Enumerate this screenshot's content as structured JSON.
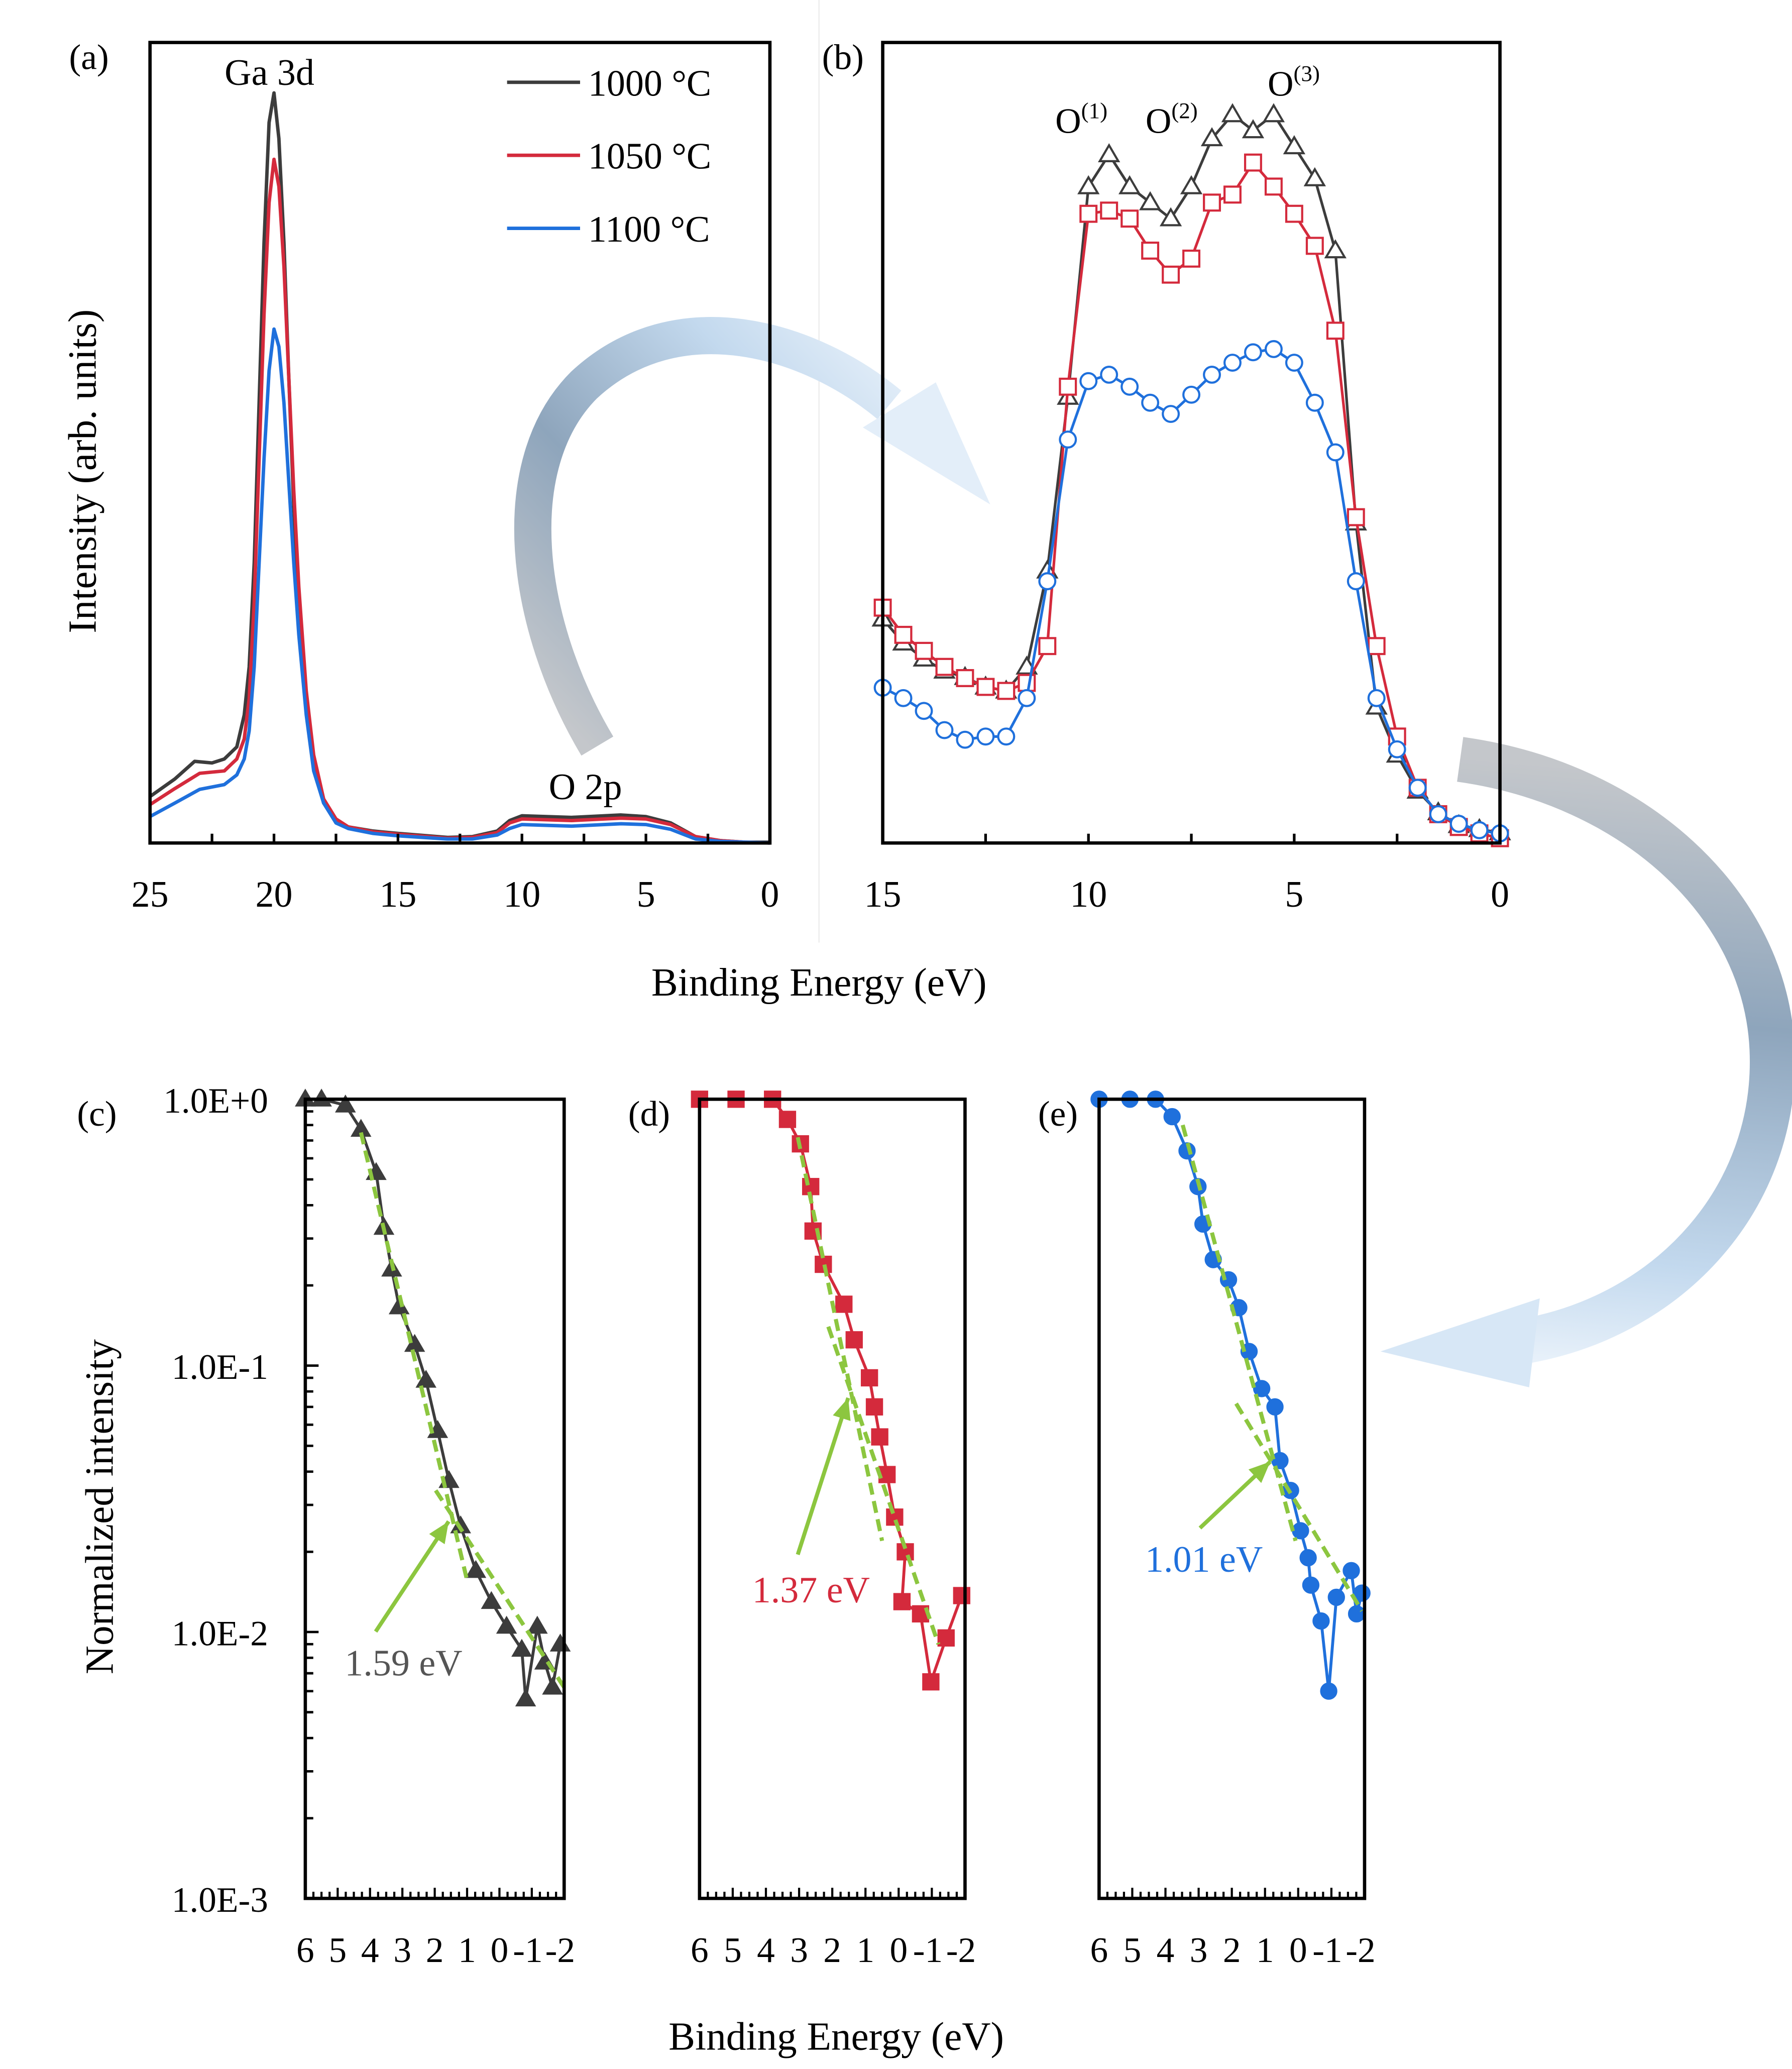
{
  "figure": {
    "xlabel_top": "Binding Energy (eV)",
    "xlabel_bottom": "Binding Energy (eV)"
  },
  "colors": {
    "series_1000": "#3c3c3c",
    "series_1050": "#d42a3c",
    "series_1100": "#1f70dc",
    "fit_line": "#8cc63f",
    "annotation_c": "#555555"
  },
  "chart_data": [
    {
      "panel_label": "(a)",
      "type": "line",
      "ylabel": "Intensity (arb. units)",
      "xlim": [
        25,
        0
      ],
      "ylim": [
        0,
        100
      ],
      "xticks": [
        25,
        20,
        15,
        10,
        5,
        0
      ],
      "xticklabels": [
        "25",
        "20",
        "15",
        "10",
        "5",
        "0"
      ],
      "grid": false,
      "annotations": [
        "Ga 3d",
        "O 2p"
      ],
      "legend": {
        "position": "top-right"
      },
      "series": [
        {
          "name": "1000 °C",
          "color": "#3c3c3c",
          "points": [
            [
              25,
              5.8
            ],
            [
              24,
              8
            ],
            [
              23.2,
              10.2
            ],
            [
              22.5,
              10
            ],
            [
              22,
              10.5
            ],
            [
              21.5,
              12
            ],
            [
              21.2,
              16
            ],
            [
              21,
              22
            ],
            [
              20.8,
              35
            ],
            [
              20.6,
              55
            ],
            [
              20.4,
              75
            ],
            [
              20.2,
              90
            ],
            [
              20,
              93.7
            ],
            [
              19.8,
              88
            ],
            [
              19.6,
              75
            ],
            [
              19.4,
              58
            ],
            [
              19.2,
              42
            ],
            [
              19,
              30
            ],
            [
              18.7,
              18
            ],
            [
              18.4,
              10
            ],
            [
              18,
              5
            ],
            [
              17.5,
              2.8
            ],
            [
              17,
              2
            ],
            [
              16,
              1.5
            ],
            [
              15,
              1.2
            ],
            [
              13,
              0.7
            ],
            [
              12,
              0.8
            ],
            [
              11,
              1.5
            ],
            [
              10.5,
              2.8
            ],
            [
              10,
              3.4
            ],
            [
              8,
              3.2
            ],
            [
              6,
              3.5
            ],
            [
              5,
              3.3
            ],
            [
              4,
              2.5
            ],
            [
              3,
              0.8
            ],
            [
              2,
              0.3
            ],
            [
              1,
              0.1
            ],
            [
              0,
              0.1
            ]
          ]
        },
        {
          "name": "1050 °C",
          "color": "#d42a3c",
          "points": [
            [
              25,
              4.8
            ],
            [
              24,
              6.8
            ],
            [
              23,
              8.7
            ],
            [
              22,
              9
            ],
            [
              21.5,
              10.5
            ],
            [
              21.2,
              13
            ],
            [
              21,
              18
            ],
            [
              20.8,
              30
            ],
            [
              20.6,
              48
            ],
            [
              20.4,
              66
            ],
            [
              20.2,
              80
            ],
            [
              20,
              85.4
            ],
            [
              19.8,
              82
            ],
            [
              19.6,
              72
            ],
            [
              19.4,
              58
            ],
            [
              19.2,
              44
            ],
            [
              19,
              32
            ],
            [
              18.7,
              19
            ],
            [
              18.4,
              11
            ],
            [
              18,
              5.5
            ],
            [
              17.5,
              3
            ],
            [
              17,
              2
            ],
            [
              16,
              1.4
            ],
            [
              15,
              1.1
            ],
            [
              13,
              0.6
            ],
            [
              12,
              0.7
            ],
            [
              11,
              1.3
            ],
            [
              10.5,
              2.5
            ],
            [
              10,
              3
            ],
            [
              8,
              2.8
            ],
            [
              6,
              3.1
            ],
            [
              5,
              3
            ],
            [
              4,
              2.3
            ],
            [
              3,
              0.8
            ],
            [
              2,
              0.3
            ],
            [
              1,
              0.1
            ],
            [
              0,
              0
            ]
          ]
        },
        {
          "name": "1100 °C",
          "color": "#1f70dc",
          "points": [
            [
              25,
              3.3
            ],
            [
              24,
              5
            ],
            [
              23,
              6.7
            ],
            [
              22,
              7.3
            ],
            [
              21.5,
              8.5
            ],
            [
              21.2,
              10.5
            ],
            [
              21,
              14
            ],
            [
              20.8,
              22
            ],
            [
              20.6,
              35
            ],
            [
              20.4,
              48
            ],
            [
              20.2,
              59
            ],
            [
              20,
              64.2
            ],
            [
              19.8,
              62
            ],
            [
              19.6,
              55
            ],
            [
              19.4,
              45
            ],
            [
              19.2,
              35
            ],
            [
              19,
              26
            ],
            [
              18.7,
              16
            ],
            [
              18.4,
              9
            ],
            [
              18,
              5
            ],
            [
              17.5,
              2.5
            ],
            [
              17,
              1.8
            ],
            [
              16,
              1.2
            ],
            [
              15,
              0.9
            ],
            [
              13,
              0.5
            ],
            [
              12,
              0.5
            ],
            [
              11,
              1
            ],
            [
              10.5,
              1.8
            ],
            [
              10,
              2.3
            ],
            [
              8,
              2.1
            ],
            [
              6,
              2.4
            ],
            [
              5,
              2.3
            ],
            [
              4,
              1.7
            ],
            [
              3,
              0.5
            ],
            [
              2,
              0.2
            ],
            [
              1,
              0.1
            ],
            [
              0,
              0
            ]
          ]
        }
      ]
    },
    {
      "panel_label": "(b)",
      "type": "line",
      "xlim": [
        15,
        0
      ],
      "ylim": [
        0,
        100
      ],
      "xticks": [
        15,
        10,
        5,
        0
      ],
      "xticklabels": [
        "15",
        "10",
        "5",
        "0"
      ],
      "grid": false,
      "annotations": [
        {
          "base": "O",
          "sup": "(1)"
        },
        {
          "base": "O",
          "sup": "(2)"
        },
        {
          "base": "O",
          "sup": "(3)"
        }
      ],
      "x": [
        15,
        14.5,
        14,
        13.5,
        13,
        12.5,
        12,
        11.5,
        11,
        10.5,
        10,
        9.5,
        9,
        8.5,
        8,
        7.5,
        7,
        6.5,
        6,
        5.5,
        5,
        4.5,
        4,
        3.5,
        3,
        2.5,
        2,
        1.5,
        1,
        0.5,
        0
      ],
      "series": [
        {
          "marker": "triangle-open",
          "color": "#3c3c3c",
          "values": [
            28,
            25,
            23,
            21.5,
            20.7,
            19.5,
            19,
            22,
            34,
            55.7,
            82,
            86,
            82,
            80,
            78,
            82,
            88,
            91,
            89,
            91,
            87,
            83,
            74,
            40,
            17,
            11,
            6.5,
            3.8,
            2.2,
            1.7,
            1.3
          ]
        },
        {
          "marker": "square-open",
          "color": "#d42a3c",
          "values": [
            29.4,
            26,
            24,
            22,
            20.6,
            19.5,
            19,
            20,
            24.6,
            57,
            78.6,
            79,
            78,
            74,
            71,
            73,
            80,
            81,
            85,
            82,
            78.6,
            74.6,
            64,
            40.7,
            24.6,
            13.3,
            6.9,
            3.6,
            2,
            1.2,
            0.6
          ]
        },
        {
          "marker": "circle-open",
          "color": "#1f70dc",
          "values": [
            19.4,
            18.1,
            16.5,
            14.1,
            12.9,
            13.3,
            13.3,
            18.1,
            32.7,
            50.4,
            57.7,
            58.5,
            57,
            55,
            53.6,
            56,
            58.5,
            60,
            61.3,
            61.7,
            60,
            55,
            48.8,
            32.7,
            18.1,
            11.7,
            6.9,
            3.6,
            2.4,
            1.6,
            1.2
          ]
        }
      ]
    },
    {
      "panel_label": "(c)",
      "type": "scatter",
      "ylabel": "Normalized intensity",
      "yscale": "log",
      "ylim": [
        0.001,
        1
      ],
      "yticks": [
        1,
        0.1,
        0.01,
        0.001
      ],
      "yticklabels": [
        "1.0E+0",
        "1.0E-1",
        "1.0E-2",
        "1.0E-3"
      ],
      "xlim": [
        6,
        -2
      ],
      "xticks": [
        6,
        5,
        4,
        3,
        2,
        1,
        0,
        -1,
        -2
      ],
      "xticklabels": [
        "6",
        "5",
        "4",
        "3",
        "2",
        "1",
        "0",
        "-1",
        "-2"
      ],
      "annotation": "1.59 eV",
      "series": [
        {
          "marker": "triangle-filled",
          "color": "#3c3c3c",
          "points": [
            [
              6,
              1.0
            ],
            [
              5.5,
              1.0
            ],
            [
              4.76,
              0.95
            ],
            [
              4.28,
              0.77
            ],
            [
              3.81,
              0.53
            ],
            [
              3.57,
              0.33
            ],
            [
              3.33,
              0.23
            ],
            [
              3.1,
              0.166
            ],
            [
              2.62,
              0.12
            ],
            [
              2.27,
              0.088
            ],
            [
              1.91,
              0.057
            ],
            [
              1.56,
              0.037
            ],
            [
              1.2,
              0.025
            ],
            [
              0.73,
              0.017
            ],
            [
              0.25,
              0.013
            ],
            [
              -0.22,
              0.0105
            ],
            [
              -0.69,
              0.0086
            ],
            [
              -0.81,
              0.0056
            ],
            [
              -1.17,
              0.0105
            ],
            [
              -1.4,
              0.0077
            ],
            [
              -1.64,
              0.0062
            ],
            [
              -1.88,
              0.009
            ]
          ]
        }
      ],
      "fit_lines": [
        [
          [
            4.28,
            0.75
          ],
          [
            1.02,
            0.016
          ]
        ],
        [
          [
            1.97,
            0.034
          ],
          [
            -2,
            0.0062
          ]
        ]
      ]
    },
    {
      "panel_label": "(d)",
      "type": "scatter",
      "yscale": "log",
      "ylim": [
        0.001,
        1
      ],
      "xlim": [
        6,
        -2
      ],
      "xticks": [
        6,
        5,
        4,
        3,
        2,
        1,
        0,
        -1,
        -2
      ],
      "xticklabels": [
        "6",
        "5",
        "4",
        "3",
        "2",
        "1",
        "0",
        "-1",
        "-2"
      ],
      "annotation": "1.37 eV",
      "series": [
        {
          "marker": "square-filled",
          "color": "#d42a3c",
          "points": [
            [
              6,
              1.0
            ],
            [
              4.9,
              1.0
            ],
            [
              3.8,
              1.0
            ],
            [
              3.35,
              0.84
            ],
            [
              2.96,
              0.68
            ],
            [
              2.65,
              0.47
            ],
            [
              2.58,
              0.32
            ],
            [
              2.27,
              0.24
            ],
            [
              1.65,
              0.17
            ],
            [
              1.34,
              0.125
            ],
            [
              0.88,
              0.09
            ],
            [
              0.73,
              0.07
            ],
            [
              0.57,
              0.054
            ],
            [
              0.35,
              0.039
            ],
            [
              0.12,
              0.027
            ],
            [
              -0.2,
              0.02
            ],
            [
              -0.1,
              0.013
            ],
            [
              -0.66,
              0.0117
            ],
            [
              -0.97,
              0.0065
            ],
            [
              -1.43,
              0.0095
            ],
            [
              -1.9,
              0.0137
            ]
          ]
        }
      ],
      "fit_lines": [
        [
          [
            3.04,
            0.72
          ],
          [
            0.5,
            0.022
          ]
        ],
        [
          [
            2.12,
            0.14
          ],
          [
            -1.2,
            0.009
          ]
        ]
      ]
    },
    {
      "panel_label": "(e)",
      "type": "scatter",
      "yscale": "log",
      "ylim": [
        0.001,
        1
      ],
      "xlim": [
        6,
        -2
      ],
      "xticks": [
        6,
        5,
        4,
        3,
        2,
        1,
        0,
        -1,
        -2
      ],
      "xticklabels": [
        "6",
        "5",
        "4",
        "3",
        "2",
        "1",
        "0",
        "-1",
        "-2"
      ],
      "annotation": "1.01 eV",
      "series": [
        {
          "marker": "circle-filled",
          "color": "#1f70dc",
          "points": [
            [
              6,
              1.0
            ],
            [
              5.07,
              1.0
            ],
            [
              4.3,
              1.0
            ],
            [
              3.8,
              0.86
            ],
            [
              3.35,
              0.64
            ],
            [
              3.02,
              0.47
            ],
            [
              2.87,
              0.34
            ],
            [
              2.56,
              0.25
            ],
            [
              2.1,
              0.21
            ],
            [
              1.79,
              0.165
            ],
            [
              1.48,
              0.113
            ],
            [
              1.1,
              0.082
            ],
            [
              0.7,
              0.07
            ],
            [
              0.55,
              0.044
            ],
            [
              0.23,
              0.034
            ],
            [
              -0.07,
              0.024
            ],
            [
              -0.3,
              0.019
            ],
            [
              -0.38,
              0.015
            ],
            [
              -0.69,
              0.011
            ],
            [
              -0.92,
              0.006
            ],
            [
              -1.15,
              0.0135
            ],
            [
              -1.6,
              0.017
            ],
            [
              -1.76,
              0.0117
            ],
            [
              -1.92,
              0.014
            ]
          ]
        }
      ],
      "fit_lines": [
        [
          [
            3.48,
            0.8
          ],
          [
            0.08,
            0.022
          ]
        ],
        [
          [
            1.87,
            0.072
          ],
          [
            -1.92,
            0.012
          ]
        ]
      ]
    }
  ]
}
